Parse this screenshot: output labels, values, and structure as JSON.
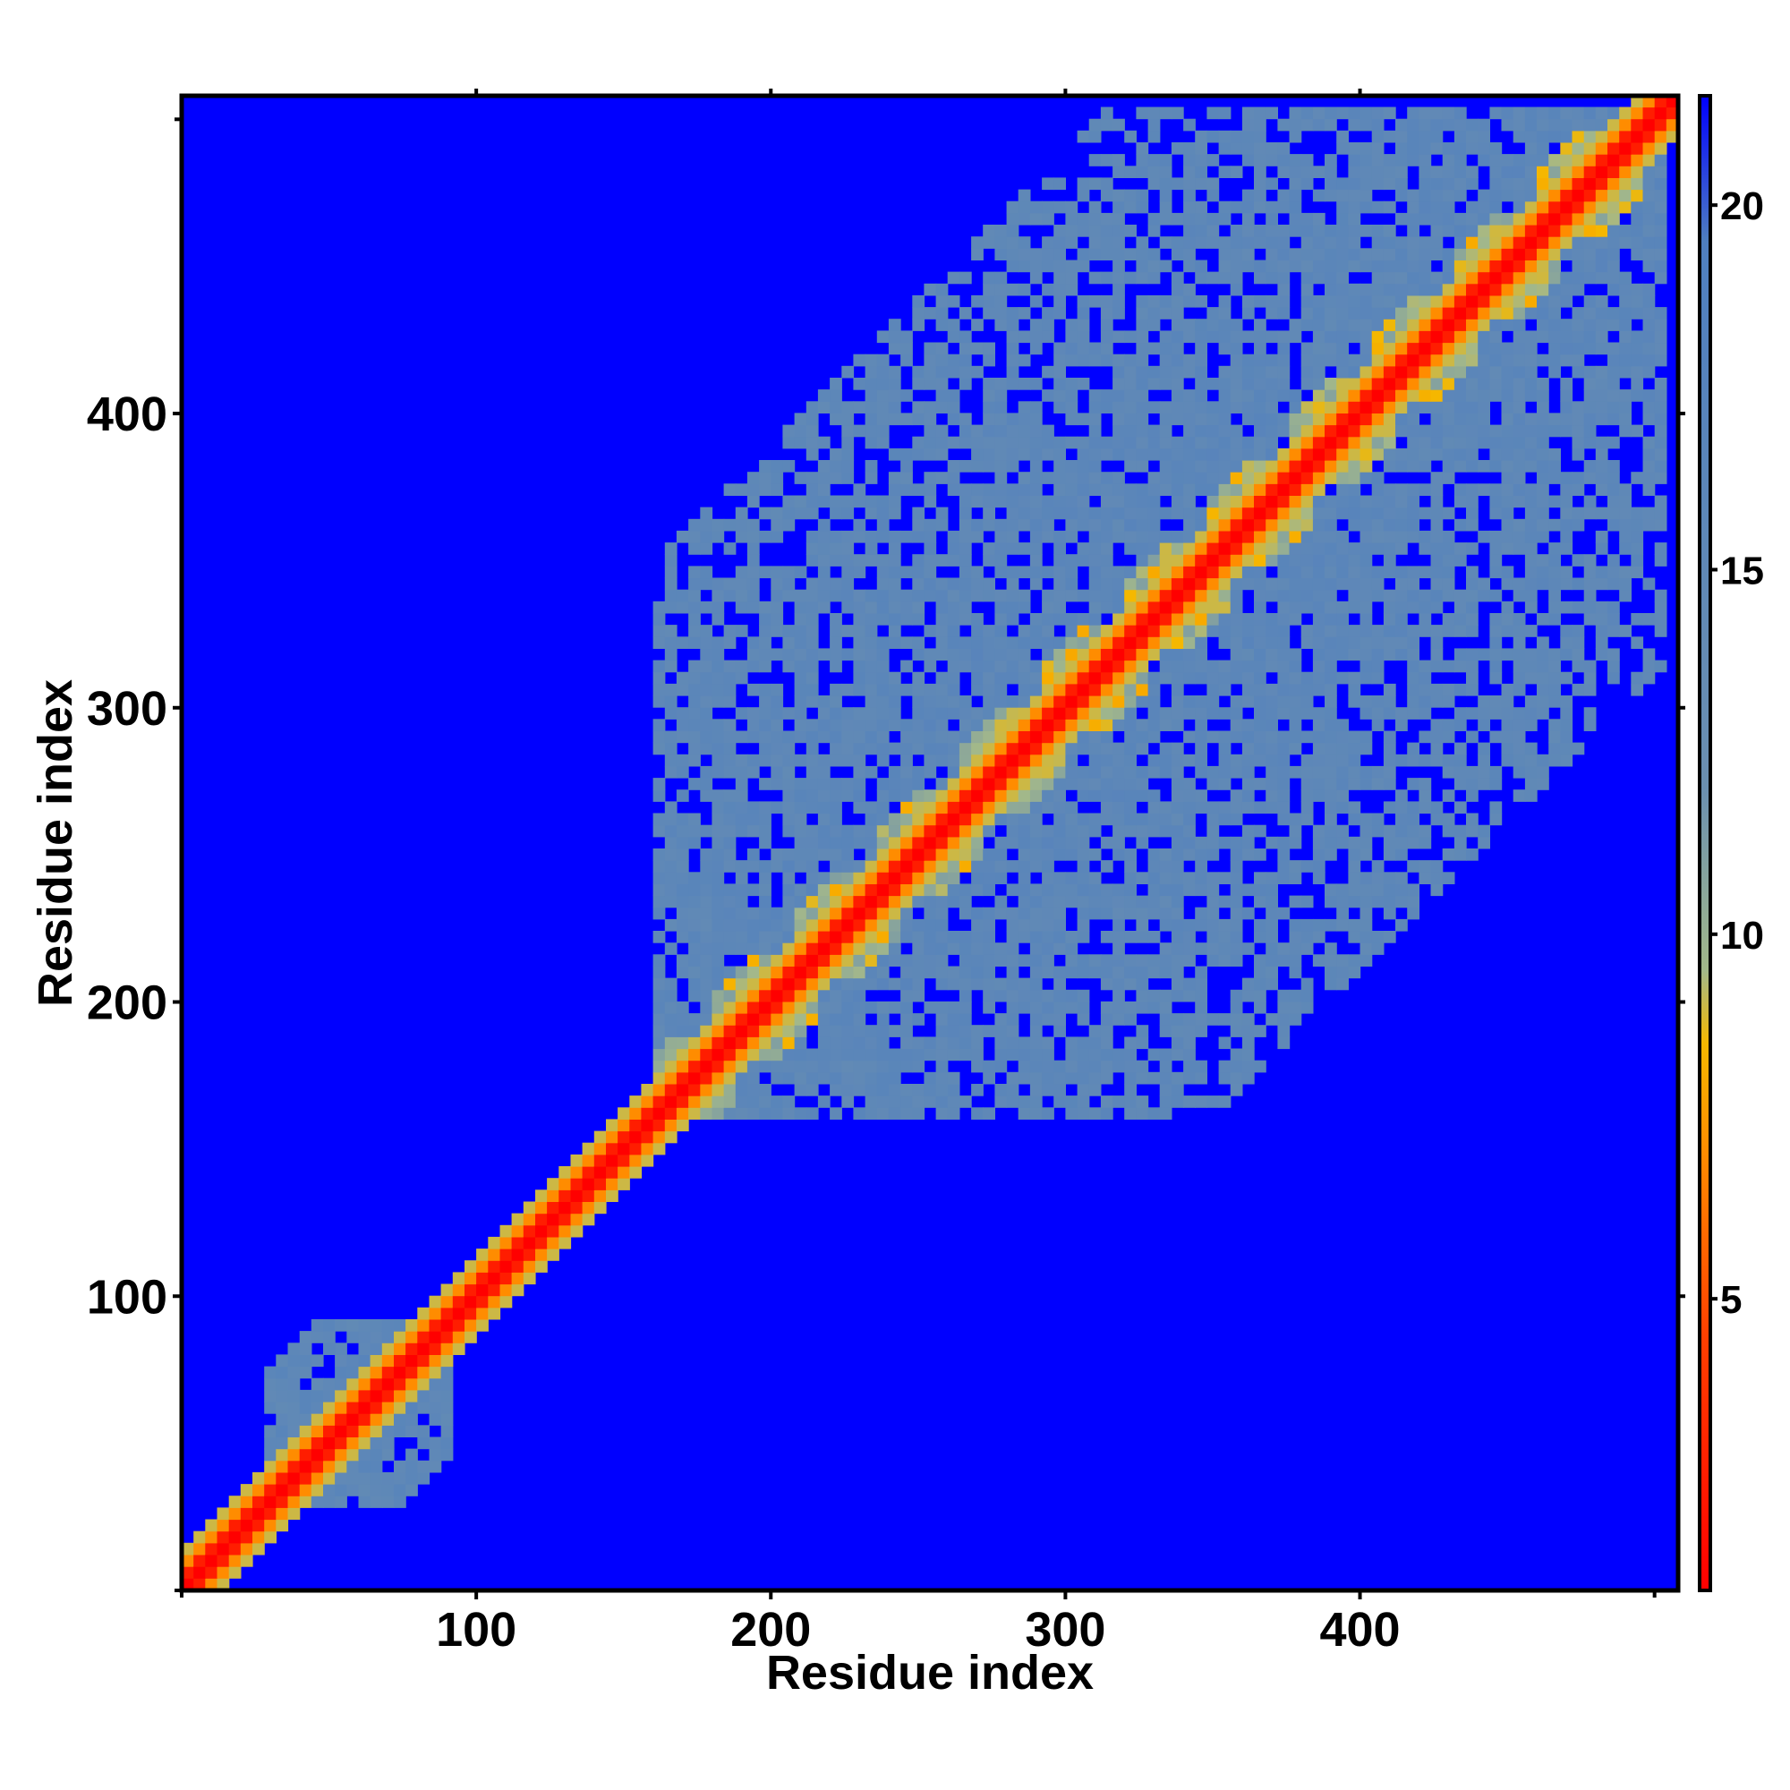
{
  "chart_data": {
    "type": "heatmap",
    "title": "",
    "xlabel": "Residue index",
    "ylabel": "Residue index",
    "xlim": [
      0,
      508
    ],
    "ylim": [
      0,
      508
    ],
    "x_ticks": [
      {
        "value": 100,
        "label": "100"
      },
      {
        "value": 200,
        "label": "200"
      },
      {
        "value": 300,
        "label": "300"
      },
      {
        "value": 400,
        "label": "400"
      }
    ],
    "y_ticks": [
      {
        "value": 100,
        "label": "100"
      },
      {
        "value": 200,
        "label": "200"
      },
      {
        "value": 300,
        "label": "300"
      },
      {
        "value": 400,
        "label": "400"
      }
    ],
    "minor_ticks": [
      0,
      500
    ],
    "colorbar": {
      "range": [
        1,
        21.5
      ],
      "ticks": [
        {
          "value": 5,
          "label": "5"
        },
        {
          "value": 10,
          "label": "10"
        },
        {
          "value": 15,
          "label": "15"
        },
        {
          "value": 20,
          "label": "20"
        }
      ],
      "stops": [
        {
          "value": 1,
          "color": "#ff0000"
        },
        {
          "value": 4.5,
          "color": "#ff4000"
        },
        {
          "value": 7,
          "color": "#ff8c00"
        },
        {
          "value": 8.5,
          "color": "#f5b800"
        },
        {
          "value": 9.5,
          "color": "#a3b88a"
        },
        {
          "value": 12,
          "color": "#6b8fb0"
        },
        {
          "value": 19.5,
          "color": "#4f7fc0"
        },
        {
          "value": 21.5,
          "color": "#0000ff"
        }
      ]
    },
    "background_value": 21.5,
    "diagonal_value": 1,
    "domains": [
      {
        "start": 25,
        "end": 90,
        "value": 16
      },
      {
        "start": 160,
        "end": 500,
        "value": 16
      }
    ],
    "repeat_centers": [
      165,
      193,
      221,
      249,
      277,
      305,
      333,
      361,
      389,
      417,
      445,
      473
    ],
    "colors": {
      "background": "#0000ff",
      "contact": "#ff0000",
      "near": "#ff8c00",
      "mid": "#5b86bb",
      "frame": "#000000"
    }
  }
}
